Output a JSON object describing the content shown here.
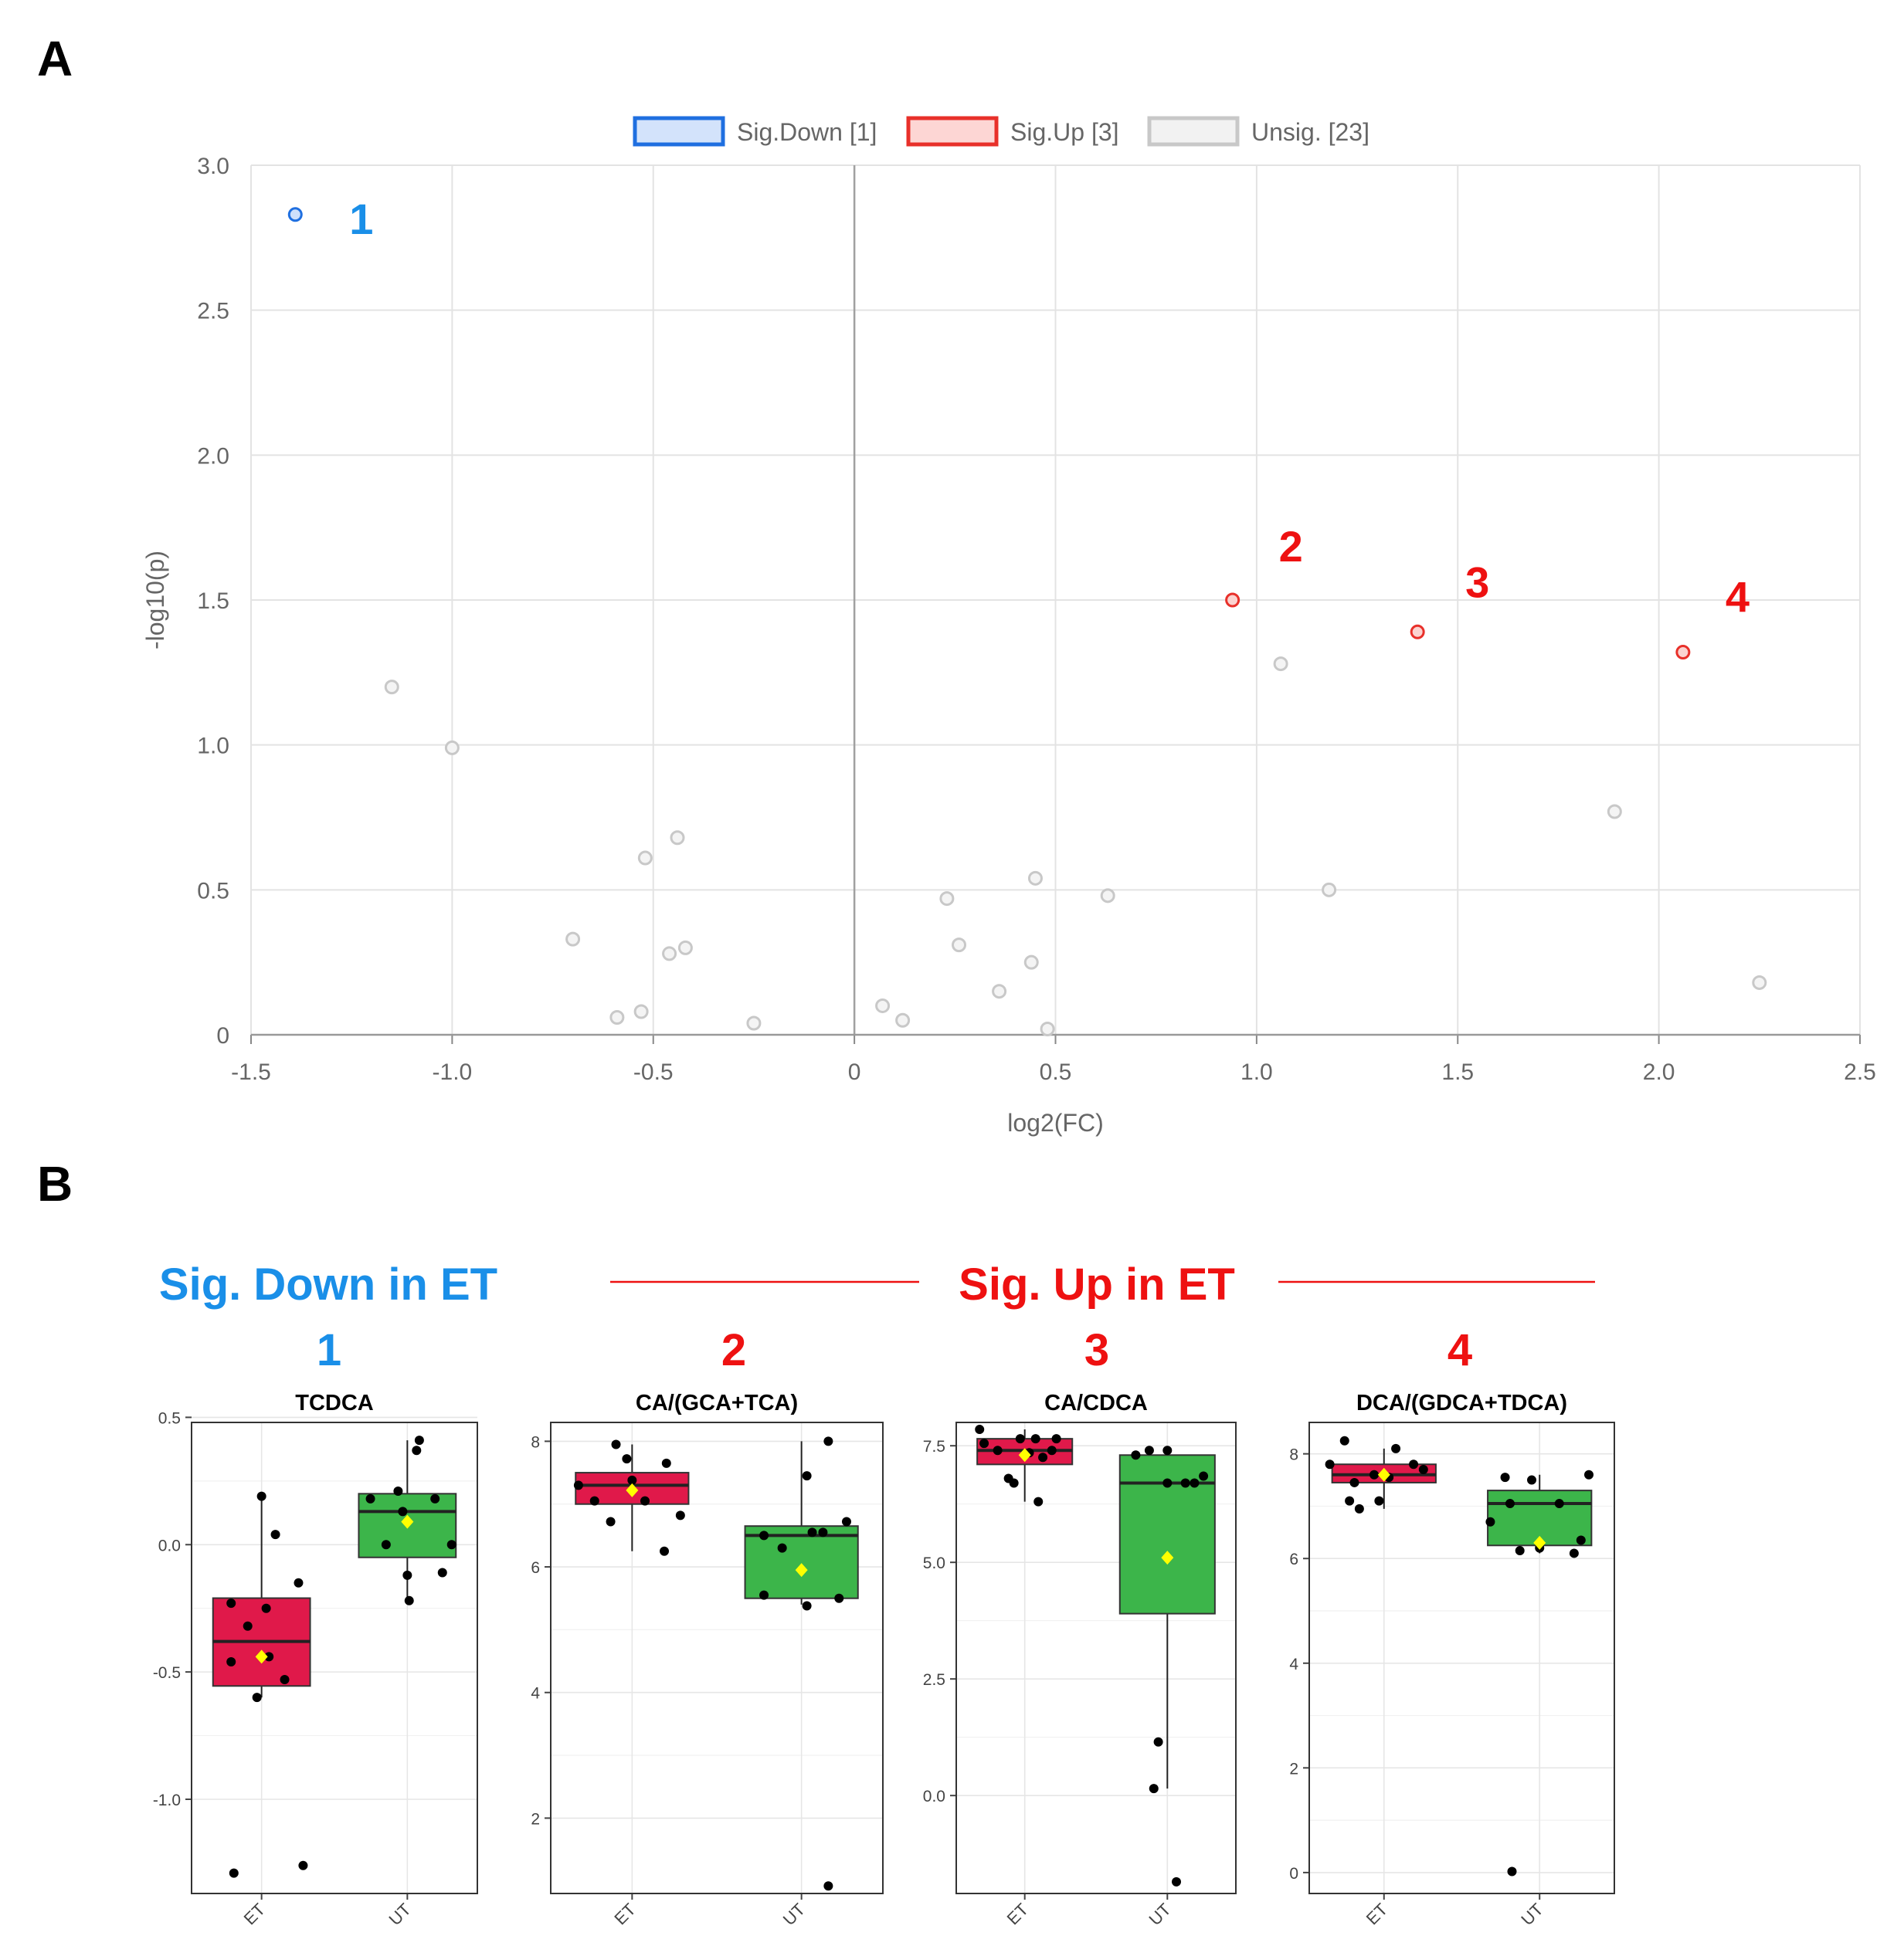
{
  "panel_labels": {
    "a": "A",
    "b": "B"
  },
  "colors": {
    "sig_down": "#1f6fe0",
    "sig_up": "#e8302a",
    "unsig": "#c8c8c8",
    "box_et": "#e0194a",
    "box_ut": "#3cb54a",
    "mean_marker": "#ffff00",
    "headline_down": "#1a8fe8",
    "headline_up": "#ee1111"
  },
  "panel_b_headers": {
    "down": "Sig. Down in ET",
    "up": "Sig. Up in ET",
    "numbers": [
      "1",
      "2",
      "3",
      "4"
    ]
  },
  "chart_data": [
    {
      "type": "scatter",
      "xlabel": "log2(FC)",
      "ylabel": "-log10(p)",
      "xlim": [
        -1.5,
        2.5
      ],
      "ylim": [
        0,
        3.0
      ],
      "x_ticks": [
        -1.5,
        -1.0,
        -0.5,
        0,
        0.5,
        1.0,
        1.5,
        2.0,
        2.5
      ],
      "x_tick_labels": [
        "-1.5",
        "-1.0",
        "-0.5",
        "0",
        "0.5",
        "1.0",
        "1.5",
        "2.0",
        "2.5"
      ],
      "y_ticks": [
        0,
        0.5,
        1.0,
        1.5,
        2.0,
        2.5,
        3.0
      ],
      "y_tick_labels": [
        "0",
        "0.5",
        "1.0",
        "1.5",
        "2.0",
        "2.5",
        "3.0"
      ],
      "grid": true,
      "legend_position": "top-center",
      "legend": [
        {
          "label": "Sig.Down [1]",
          "key": "sig_down"
        },
        {
          "label": "Sig.Up [3]",
          "key": "sig_up"
        },
        {
          "label": "Unsig. [23]",
          "key": "unsig"
        }
      ],
      "series": [
        {
          "key": "sig_down",
          "points": [
            {
              "x": -1.39,
              "y": 2.83,
              "label": "1"
            }
          ]
        },
        {
          "key": "sig_up",
          "points": [
            {
              "x": 0.94,
              "y": 1.5,
              "label": "2"
            },
            {
              "x": 1.4,
              "y": 1.39,
              "label": "3"
            },
            {
              "x": 2.06,
              "y": 1.32,
              "label": "4"
            }
          ]
        },
        {
          "key": "unsig",
          "points": [
            {
              "x": -1.15,
              "y": 1.2
            },
            {
              "x": -1.0,
              "y": 0.99
            },
            {
              "x": -0.7,
              "y": 0.33
            },
            {
              "x": -0.59,
              "y": 0.06
            },
            {
              "x": -0.53,
              "y": 0.08
            },
            {
              "x": -0.52,
              "y": 0.61
            },
            {
              "x": -0.46,
              "y": 0.28
            },
            {
              "x": -0.44,
              "y": 0.68
            },
            {
              "x": -0.42,
              "y": 0.3
            },
            {
              "x": -0.25,
              "y": 0.04
            },
            {
              "x": 0.07,
              "y": 0.1
            },
            {
              "x": 0.12,
              "y": 0.05
            },
            {
              "x": 0.23,
              "y": 0.47
            },
            {
              "x": 0.26,
              "y": 0.31
            },
            {
              "x": 0.36,
              "y": 0.15
            },
            {
              "x": 0.44,
              "y": 0.25
            },
            {
              "x": 0.45,
              "y": 0.54
            },
            {
              "x": 0.48,
              "y": 0.02
            },
            {
              "x": 0.63,
              "y": 0.48
            },
            {
              "x": 1.06,
              "y": 1.28
            },
            {
              "x": 1.18,
              "y": 0.5
            },
            {
              "x": 1.89,
              "y": 0.77
            },
            {
              "x": 2.25,
              "y": 0.18
            }
          ]
        }
      ]
    },
    {
      "type": "box",
      "title": "TCDCA",
      "categories": [
        "ET",
        "UT"
      ],
      "ylim": [
        -1.37,
        0.48
      ],
      "y_ticks": [
        -1.0,
        -0.5,
        0.0,
        0.5
      ],
      "y_tick_labels": [
        "-1.0",
        "-0.5",
        "0.0",
        "0.5"
      ],
      "boxes": [
        {
          "group": "ET",
          "q1": -0.555,
          "median": -0.38,
          "q3": -0.21,
          "whisker_low": -0.6,
          "whisker_high": 0.19,
          "mean": -0.44,
          "points": [
            [
              -0.3,
              -1.29
            ],
            [
              -0.33,
              -0.23
            ],
            [
              -0.33,
              -0.46
            ],
            [
              -0.15,
              -0.32
            ],
            [
              -0.05,
              -0.6
            ],
            [
              0.0,
              0.19
            ],
            [
              0.05,
              -0.25
            ],
            [
              0.08,
              -0.44
            ],
            [
              0.15,
              0.04
            ],
            [
              0.25,
              -0.53
            ],
            [
              0.4,
              -0.15
            ],
            [
              0.45,
              -1.26
            ]
          ]
        },
        {
          "group": "UT",
          "q1": -0.05,
          "median": 0.13,
          "q3": 0.2,
          "whisker_low": -0.22,
          "whisker_high": 0.41,
          "mean": 0.09,
          "points": [
            [
              -0.4,
              0.18
            ],
            [
              -0.23,
              0.0
            ],
            [
              -0.1,
              0.21
            ],
            [
              -0.05,
              0.13
            ],
            [
              0.0,
              -0.12
            ],
            [
              0.02,
              -0.22
            ],
            [
              0.1,
              0.37
            ],
            [
              0.13,
              0.41
            ],
            [
              0.3,
              0.18
            ],
            [
              0.38,
              -0.11
            ],
            [
              0.48,
              0.0
            ]
          ]
        }
      ]
    },
    {
      "type": "box",
      "title": "CA/(GCA+TCA)",
      "categories": [
        "ET",
        "UT"
      ],
      "ylim": [
        0.8,
        8.3
      ],
      "y_ticks": [
        2,
        4,
        6,
        8
      ],
      "y_tick_labels": [
        "2",
        "4",
        "6",
        "8"
      ],
      "boxes": [
        {
          "group": "ET",
          "q1": 7.0,
          "median": 7.3,
          "q3": 7.5,
          "whisker_low": 6.25,
          "whisker_high": 7.95,
          "mean": 7.22,
          "points": [
            [
              -0.5,
              7.3
            ],
            [
              -0.35,
              7.05
            ],
            [
              -0.2,
              6.72
            ],
            [
              -0.15,
              7.95
            ],
            [
              -0.05,
              7.72
            ],
            [
              0.0,
              7.38
            ],
            [
              0.12,
              7.05
            ],
            [
              0.3,
              6.25
            ],
            [
              0.32,
              7.65
            ],
            [
              0.45,
              6.82
            ]
          ]
        },
        {
          "group": "UT",
          "q1": 5.5,
          "median": 6.5,
          "q3": 6.65,
          "whisker_low": 5.4,
          "whisker_high": 8.0,
          "mean": 5.95,
          "points": [
            [
              -0.35,
              5.55
            ],
            [
              -0.35,
              6.5
            ],
            [
              -0.18,
              6.3
            ],
            [
              0.05,
              5.38
            ],
            [
              0.05,
              7.45
            ],
            [
              0.1,
              6.55
            ],
            [
              0.2,
              6.55
            ],
            [
              0.25,
              0.92
            ],
            [
              0.25,
              8.0
            ],
            [
              0.35,
              5.5
            ],
            [
              0.42,
              6.72
            ]
          ]
        }
      ]
    },
    {
      "type": "box",
      "title": "CA/CDCA",
      "categories": [
        "ET",
        "UT"
      ],
      "ylim": [
        -2.1,
        8.0
      ],
      "y_ticks": [
        0.0,
        2.5,
        5.0,
        7.5
      ],
      "y_tick_labels": [
        "0.0",
        "2.5",
        "5.0",
        "7.5"
      ],
      "boxes": [
        {
          "group": "ET",
          "q1": 7.1,
          "median": 7.4,
          "q3": 7.65,
          "whisker_low": 6.3,
          "whisker_high": 7.85,
          "mean": 7.3,
          "points": [
            [
              -0.5,
              7.85
            ],
            [
              -0.45,
              7.55
            ],
            [
              -0.3,
              7.4
            ],
            [
              -0.18,
              6.8
            ],
            [
              -0.12,
              6.7
            ],
            [
              -0.05,
              7.65
            ],
            [
              0.05,
              7.35
            ],
            [
              0.12,
              7.65
            ],
            [
              0.15,
              6.3
            ],
            [
              0.2,
              7.25
            ],
            [
              0.3,
              7.4
            ],
            [
              0.35,
              7.65
            ]
          ]
        },
        {
          "group": "UT",
          "q1": 3.9,
          "median": 6.7,
          "q3": 7.3,
          "whisker_low": 0.15,
          "whisker_high": 7.4,
          "mean": 5.1,
          "points": [
            [
              -0.35,
              7.3
            ],
            [
              -0.2,
              7.4
            ],
            [
              -0.1,
              1.15
            ],
            [
              -0.15,
              0.15
            ],
            [
              0.0,
              6.7
            ],
            [
              0.0,
              7.4
            ],
            [
              0.1,
              -1.85
            ],
            [
              0.2,
              6.7
            ],
            [
              0.3,
              6.7
            ],
            [
              0.4,
              6.85
            ]
          ]
        }
      ]
    },
    {
      "type": "box",
      "title": "DCA/(GDCA+TDCA)",
      "categories": [
        "ET",
        "UT"
      ],
      "ylim": [
        -0.4,
        8.6
      ],
      "y_ticks": [
        0,
        2,
        4,
        6,
        8
      ],
      "y_tick_labels": [
        "0",
        "2",
        "4",
        "6",
        "8"
      ],
      "boxes": [
        {
          "group": "ET",
          "q1": 7.45,
          "median": 7.6,
          "q3": 7.8,
          "whisker_low": 6.95,
          "whisker_high": 8.1,
          "mean": 7.6,
          "points": [
            [
              -0.55,
              7.8
            ],
            [
              -0.4,
              8.25
            ],
            [
              -0.35,
              7.1
            ],
            [
              -0.3,
              7.45
            ],
            [
              -0.25,
              6.95
            ],
            [
              -0.1,
              7.6
            ],
            [
              -0.05,
              7.1
            ],
            [
              0.05,
              7.55
            ],
            [
              0.12,
              8.1
            ],
            [
              0.3,
              7.8
            ],
            [
              0.4,
              7.7
            ]
          ]
        },
        {
          "group": "UT",
          "q1": 6.25,
          "median": 7.05,
          "q3": 7.3,
          "whisker_low": 6.1,
          "whisker_high": 7.6,
          "mean": 6.3,
          "points": [
            [
              -0.5,
              6.7
            ],
            [
              -0.35,
              7.55
            ],
            [
              -0.3,
              7.05
            ],
            [
              -0.28,
              0.02
            ],
            [
              -0.2,
              6.15
            ],
            [
              -0.08,
              7.5
            ],
            [
              0.0,
              6.2
            ],
            [
              0.2,
              7.05
            ],
            [
              0.35,
              6.1
            ],
            [
              0.42,
              6.35
            ],
            [
              0.5,
              7.6
            ]
          ]
        }
      ]
    }
  ]
}
